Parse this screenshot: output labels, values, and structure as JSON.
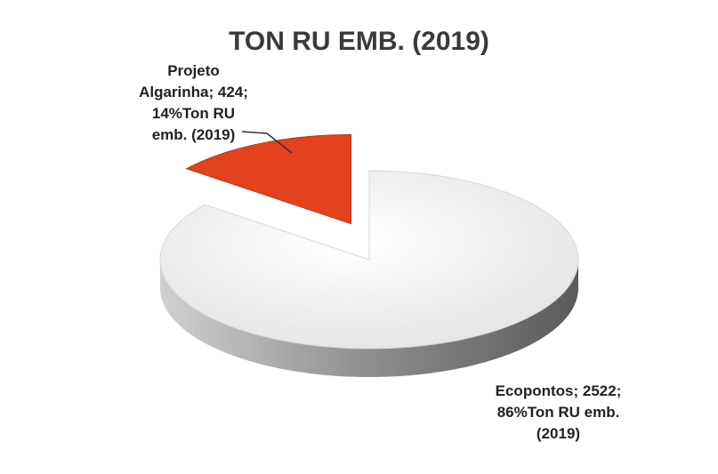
{
  "chart_data": {
    "type": "pie",
    "title": "TON RU EMB. (2019)",
    "categories": [
      "Projeto Algarinha;",
      "Ecopontos;"
    ],
    "values": [
      424,
      2522
    ],
    "value_labels": [
      "424; 14%Ton RU emb. (2019)",
      "2522; 86%Ton RU emb. (2019)"
    ],
    "colors": [
      "#e4421e",
      "#f2f2f2"
    ]
  }
}
